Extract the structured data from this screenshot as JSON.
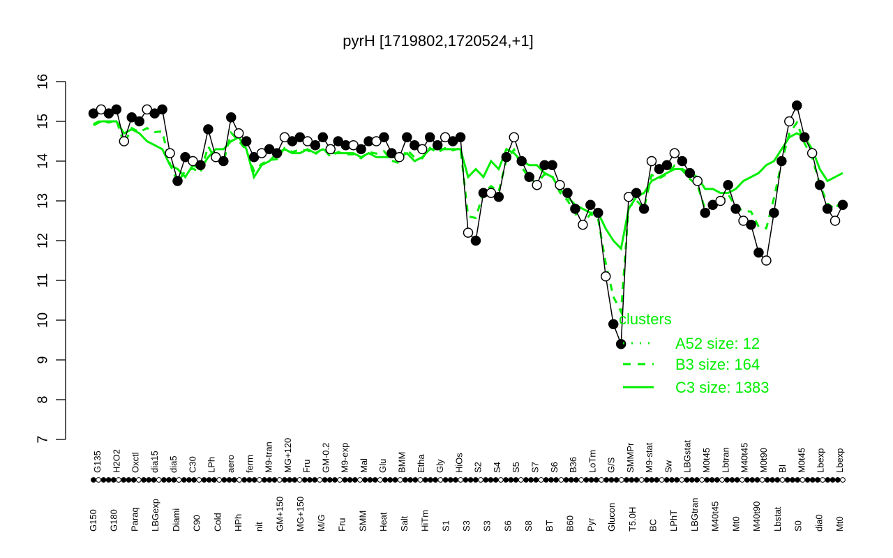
{
  "chart_data": {
    "type": "line",
    "title": "pyrH [1719802,1720524,+1]",
    "xlabel": "",
    "ylabel": "",
    "ylim": [
      7,
      16
    ],
    "yticks": [
      7,
      8,
      9,
      10,
      11,
      12,
      13,
      14,
      15,
      16
    ],
    "grid": false,
    "legend": {
      "title": "clusters",
      "position": "bottom-right",
      "entries": [
        {
          "label": "A52 size: 12",
          "style": "dotted",
          "color": "#00ee00"
        },
        {
          "label": "B3 size: 164",
          "style": "dashed",
          "color": "#00ee00"
        },
        {
          "label": "C3 size: 1383",
          "style": "solid",
          "color": "#00ee00"
        }
      ]
    },
    "x_tick_labels_top": [
      "G135",
      "H2O2",
      "Oxctl",
      "dia15",
      "dia5",
      "C30",
      "LPh",
      "aero",
      "ferm",
      "M9-tran",
      "MG+120",
      "Fru",
      "GM-0.2",
      "M9-exp",
      "Mal",
      "Glu",
      "BMM",
      "Etha",
      "Gly",
      "HiOs",
      "S2",
      "S4",
      "S5",
      "S7",
      "S6",
      "B36",
      "LoTm",
      "G/S",
      "SMMPr",
      "M9-stat",
      "Sw",
      "LBGstat",
      "M0t45",
      "Lbtran",
      "M40t45",
      "M0t90",
      "BI",
      "M0t45",
      "Lbexp",
      "Lbexp"
    ],
    "x_tick_labels_bottom": [
      "G150",
      "G180",
      "Paraq",
      "LBGexp",
      "Diami",
      "C90",
      "Cold",
      "HPh",
      "nit",
      "GM+150",
      "MG+150",
      "M/G",
      "Fru",
      "SMM",
      "Heat",
      "Salt",
      "HiTm",
      "S1",
      "S3",
      "S3",
      "S6",
      "S8",
      "BT",
      "B60",
      "Pyr",
      "Glucon",
      "T5.0H",
      "BC",
      "LPhT",
      "LBGtran",
      "M40t45",
      "Mt0",
      "M40t90",
      "Lbstat",
      "S0",
      "dia0",
      "Mt0"
    ],
    "series": [
      {
        "name": "observed",
        "color": "#000000",
        "x": [
          0.01,
          0.02,
          0.03,
          0.04,
          0.05,
          0.06,
          0.07,
          0.08,
          0.09,
          0.1,
          0.11,
          0.12,
          0.13,
          0.14,
          0.15,
          0.16,
          0.17,
          0.18,
          0.19,
          0.2,
          0.21,
          0.22,
          0.23,
          0.24,
          0.25,
          0.26,
          0.27,
          0.28,
          0.29,
          0.3,
          0.31,
          0.32,
          0.33,
          0.34,
          0.35,
          0.36,
          0.37,
          0.38,
          0.39,
          0.4,
          0.41,
          0.42,
          0.43,
          0.44,
          0.45,
          0.46,
          0.47,
          0.48,
          0.49,
          0.5,
          0.51,
          0.52,
          0.53,
          0.54,
          0.55,
          0.56,
          0.57,
          0.58,
          0.59,
          0.6,
          0.61,
          0.62,
          0.63,
          0.64,
          0.65,
          0.66,
          0.67,
          0.68,
          0.69,
          0.7,
          0.71,
          0.72,
          0.73,
          0.74,
          0.75,
          0.76,
          0.77,
          0.78,
          0.79,
          0.8,
          0.81,
          0.82,
          0.83,
          0.84,
          0.85,
          0.86,
          0.87,
          0.88,
          0.89,
          0.9,
          0.91,
          0.92,
          0.93,
          0.94,
          0.95,
          0.96,
          0.97,
          0.98,
          0.99
        ],
        "values": [
          15.2,
          15.3,
          15.2,
          15.3,
          14.5,
          15.1,
          15.0,
          15.3,
          15.2,
          15.3,
          14.2,
          13.5,
          14.1,
          14.0,
          13.9,
          14.8,
          14.1,
          14.0,
          15.1,
          14.7,
          14.5,
          14.1,
          14.2,
          14.3,
          14.2,
          14.6,
          14.5,
          14.6,
          14.5,
          14.4,
          14.6,
          14.3,
          14.5,
          14.4,
          14.4,
          14.3,
          14.5,
          14.5,
          14.6,
          14.2,
          14.1,
          14.6,
          14.4,
          14.3,
          14.6,
          14.4,
          14.6,
          14.5,
          14.6,
          12.2,
          12.0,
          13.2,
          13.2,
          13.1,
          14.1,
          14.6,
          14.0,
          13.6,
          13.4,
          13.9,
          13.9,
          13.4,
          13.2,
          12.8,
          12.4,
          12.9,
          12.7,
          11.1,
          9.9,
          9.4,
          13.1,
          13.2,
          12.8,
          14.0,
          13.8,
          13.9,
          14.2,
          14.0,
          13.7,
          13.5,
          12.7,
          12.9,
          13.0,
          13.4,
          12.8,
          12.5,
          12.4,
          11.7,
          11.5,
          12.7,
          14.0,
          15.0,
          15.4,
          14.6,
          14.2,
          13.4,
          12.8,
          12.5,
          12.9
        ]
      },
      {
        "name": "C3 size: 1383",
        "color": "#00ee00",
        "style": "solid",
        "values": [
          14.9,
          15.0,
          15.0,
          15.0,
          14.7,
          14.8,
          14.7,
          14.5,
          14.4,
          14.3,
          13.9,
          13.8,
          13.6,
          13.9,
          13.8,
          14.1,
          14.3,
          14.3,
          14.5,
          14.6,
          14.3,
          13.6,
          13.9,
          14.0,
          14.2,
          14.3,
          14.2,
          14.2,
          14.3,
          14.2,
          14.3,
          14.2,
          14.2,
          14.2,
          14.2,
          14.1,
          14.2,
          14.1,
          14.1,
          14.1,
          14.1,
          14.2,
          14.0,
          14.1,
          14.3,
          14.3,
          14.3,
          14.3,
          14.3,
          13.6,
          13.8,
          13.6,
          14.0,
          13.8,
          14.3,
          14.2,
          14.0,
          13.9,
          13.9,
          13.7,
          13.6,
          13.3,
          13.1,
          12.9,
          12.8,
          12.7,
          12.7,
          12.3,
          12.0,
          11.8,
          12.8,
          13.1,
          13.2,
          13.5,
          13.6,
          13.7,
          13.8,
          13.8,
          13.7,
          13.6,
          13.3,
          13.3,
          13.2,
          13.2,
          13.3,
          13.5,
          13.6,
          13.7,
          13.9,
          14.0,
          14.3,
          14.6,
          14.7,
          14.6,
          14.3,
          13.8,
          13.5,
          13.6,
          13.7
        ]
      }
    ]
  },
  "axis": {
    "y_ticks": [
      "7",
      "8",
      "9",
      "10",
      "11",
      "12",
      "13",
      "14",
      "15",
      "16"
    ]
  }
}
